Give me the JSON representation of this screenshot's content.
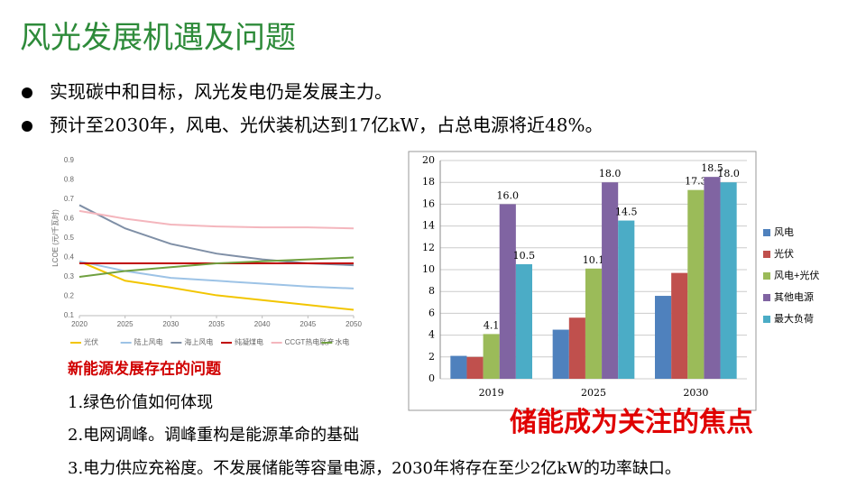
{
  "title": "风光发展机遇及问题",
  "bullets": [
    "实现碳中和目标，风光发电仍是发展主力。",
    "预计至2030年，风电、光伏装机达到17亿kW，占总电源将近48%。"
  ],
  "chart_data": [
    {
      "type": "line",
      "y_label": "LCOE (元/千瓦时)",
      "x": [
        2020,
        2025,
        2030,
        2035,
        2040,
        2045,
        2050
      ],
      "xlim": [
        2020,
        2050
      ],
      "xticks": [
        2020,
        2025,
        2030,
        2035,
        2040,
        2045,
        2050
      ],
      "ylim": [
        0.1,
        0.9
      ],
      "yticks": [
        0.1,
        0.2,
        0.3,
        0.4,
        0.5,
        0.6,
        0.7,
        0.8,
        0.9
      ],
      "grid": false,
      "series": [
        {
          "name": "光伏",
          "color": "#f2c500",
          "values": [
            0.38,
            0.28,
            0.245,
            0.205,
            0.18,
            0.155,
            0.13
          ]
        },
        {
          "name": "陆上风电",
          "color": "#9dc3e6",
          "values": [
            0.38,
            0.33,
            0.295,
            0.28,
            0.265,
            0.25,
            0.24
          ]
        },
        {
          "name": "海上风电",
          "color": "#7f8fa6",
          "values": [
            0.67,
            0.55,
            0.47,
            0.42,
            0.39,
            0.37,
            0.36
          ]
        },
        {
          "name": "纯凝煤电",
          "color": "#c00000",
          "values": [
            0.37,
            0.37,
            0.37,
            0.37,
            0.37,
            0.37,
            0.37
          ]
        },
        {
          "name": "CCGT热电联产",
          "color": "#f4b6bd",
          "values": [
            0.64,
            0.6,
            0.57,
            0.56,
            0.555,
            0.555,
            0.55
          ]
        },
        {
          "name": "水电",
          "color": "#70a040",
          "values": [
            0.3,
            0.33,
            0.35,
            0.37,
            0.38,
            0.39,
            0.4
          ]
        }
      ]
    },
    {
      "type": "bar",
      "categories": [
        "2019",
        "2025",
        "2030"
      ],
      "ylim": [
        0,
        20
      ],
      "yticks": [
        0,
        2,
        4,
        6,
        8,
        10,
        12,
        14,
        16,
        18,
        20
      ],
      "grid": true,
      "legend": "right",
      "series": [
        {
          "name": "风电",
          "color": "#4f81bd",
          "values": [
            2.1,
            4.5,
            7.6
          ]
        },
        {
          "name": "光伏",
          "color": "#c0504d",
          "values": [
            2.0,
            5.6,
            9.7
          ]
        },
        {
          "name": "风电+光伏",
          "color": "#9bbb59",
          "values": [
            4.1,
            10.1,
            17.3
          ],
          "value_labels": [
            "4.1",
            "10.1",
            "17.3"
          ]
        },
        {
          "name": "其他电源",
          "color": "#8064a2",
          "values": [
            16.0,
            18.0,
            18.5
          ],
          "value_labels": [
            "16.0",
            "18.0",
            "18.5"
          ]
        },
        {
          "name": "最大负荷",
          "color": "#4bacc6",
          "values": [
            10.5,
            14.5,
            18.0
          ],
          "value_labels": [
            "10.5",
            "14.5",
            "18.0"
          ]
        }
      ]
    }
  ],
  "problems": {
    "heading": "新能源发展存在的问题",
    "items": [
      "1.绿色价值如何体现",
      "2.电网调峰。调峰重构是能源革命的基础",
      "3.电力供应充裕度。不发展储能等容量电源，2030年将存在至少2亿kW的功率缺口。"
    ]
  },
  "highlight": "储能成为关注的焦点"
}
